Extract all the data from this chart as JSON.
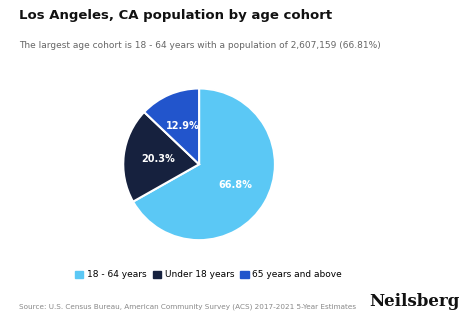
{
  "title": "Los Angeles, CA population by age cohort",
  "subtitle": "The largest age cohort is 18 - 64 years with a population of 2,607,159 (66.81%)",
  "labels": [
    "18 - 64 years",
    "Under 18 years",
    "65 years and above"
  ],
  "values": [
    66.81,
    20.3,
    12.89
  ],
  "colors": [
    "#5bc8f5",
    "#16213e",
    "#2255cc"
  ],
  "pct_labels": [
    "66.8%",
    "20.3%",
    "12.9%"
  ],
  "pct_label_radii": [
    0.55,
    0.55,
    0.55
  ],
  "source_text": "Source: U.S. Census Bureau, American Community Survey (ACS) 2017-2021 5-Year Estimates",
  "neilsberg_text": "Neilsberg",
  "background_color": "#ffffff",
  "startangle": 90,
  "title_fontsize": 9.5,
  "subtitle_fontsize": 6.5,
  "legend_fontsize": 6.5,
  "source_fontsize": 5.2,
  "neilsberg_fontsize": 12
}
